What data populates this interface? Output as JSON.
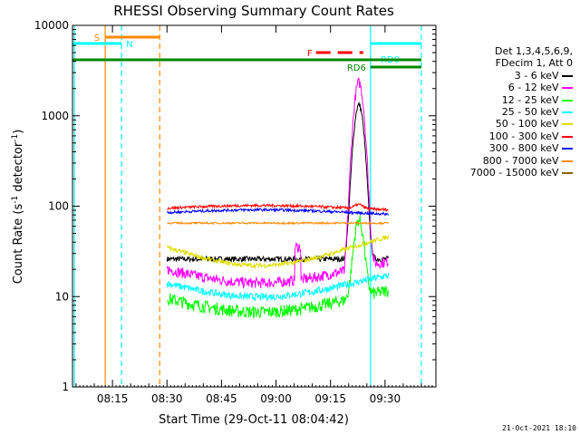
{
  "chart_data": {
    "type": "line",
    "title": "RHESSI Observing Summary Count Rates",
    "xlabel": "Start Time (29-Oct-11 08:04:42)",
    "ylabel_main": "Count Rate (s",
    "ylabel_exp1": "-1",
    "ylabel_mid": " detector",
    "ylabel_exp2": "-1",
    "ylabel_end": ")",
    "x_range_min": [
      0,
      100
    ],
    "y_scale": "log",
    "ylim": [
      1,
      10000
    ],
    "x_ticks": [
      {
        "min": 11,
        "label": "08:15"
      },
      {
        "min": 26,
        "label": "08:30"
      },
      {
        "min": 41,
        "label": "08:45"
      },
      {
        "min": 56,
        "label": "09:00"
      },
      {
        "min": 71,
        "label": "09:15"
      },
      {
        "min": 86,
        "label": "09:30"
      }
    ],
    "y_ticks": [
      {
        "value": 1,
        "label": "1"
      },
      {
        "value": 10,
        "label": "10"
      },
      {
        "value": 100,
        "label": "100"
      },
      {
        "value": 1000,
        "label": "1000"
      },
      {
        "value": 10000,
        "label": "10000"
      }
    ],
    "legend_header": [
      "Det 1,3,4,5,6,9,",
      "FDecim 1, Att 0"
    ],
    "series": [
      {
        "name": "3 - 6 keV",
        "color": "#000000"
      },
      {
        "name": "6 - 12 keV",
        "color": "#ff00ff"
      },
      {
        "name": "12 - 25 keV",
        "color": "#00ff00"
      },
      {
        "name": "25 - 50 keV",
        "color": "#00ffff"
      },
      {
        "name": "50 - 100 keV",
        "color": "#dddd00"
      },
      {
        "name": "100 - 300 keV",
        "color": "#ff0000"
      },
      {
        "name": "300 - 800 keV",
        "color": "#0000ff"
      },
      {
        "name": "800 - 7000 keV",
        "color": "#ff8800"
      },
      {
        "name": "7000 - 15000 keV",
        "color": "#886600"
      }
    ],
    "flags": [
      {
        "label": "S",
        "color": "#ff8800",
        "from": 9,
        "to": 24
      },
      {
        "label": "N",
        "color": "#00ffff",
        "from": 0,
        "to": 13.5
      },
      {
        "label": "F",
        "color": "#ff0000",
        "from": 67,
        "to": 80,
        "style": "dashed"
      },
      {
        "label": "RD0",
        "color": "#00ffff",
        "from": 82,
        "to": 96
      },
      {
        "label": "RD6",
        "color": "#008800",
        "from": 82,
        "to": 96
      },
      {
        "label": "",
        "color": "#008800",
        "from": 0,
        "to": 96
      }
    ],
    "vlines": [
      {
        "min": 0.5,
        "color": "#00ffff",
        "style": "solid"
      },
      {
        "min": 9,
        "color": "#ff8800",
        "style": "solid"
      },
      {
        "min": 13.5,
        "color": "#00ffff",
        "style": "dashed"
      },
      {
        "min": 24,
        "color": "#ff8800",
        "style": "dashed"
      },
      {
        "min": 82,
        "color": "#00ffff",
        "style": "solid"
      },
      {
        "min": 96,
        "color": "#00ffff",
        "style": "dashed"
      }
    ],
    "data_start_min": 26,
    "data_end_min": 87,
    "timestamp": "21-Oct-2021 18:10"
  }
}
